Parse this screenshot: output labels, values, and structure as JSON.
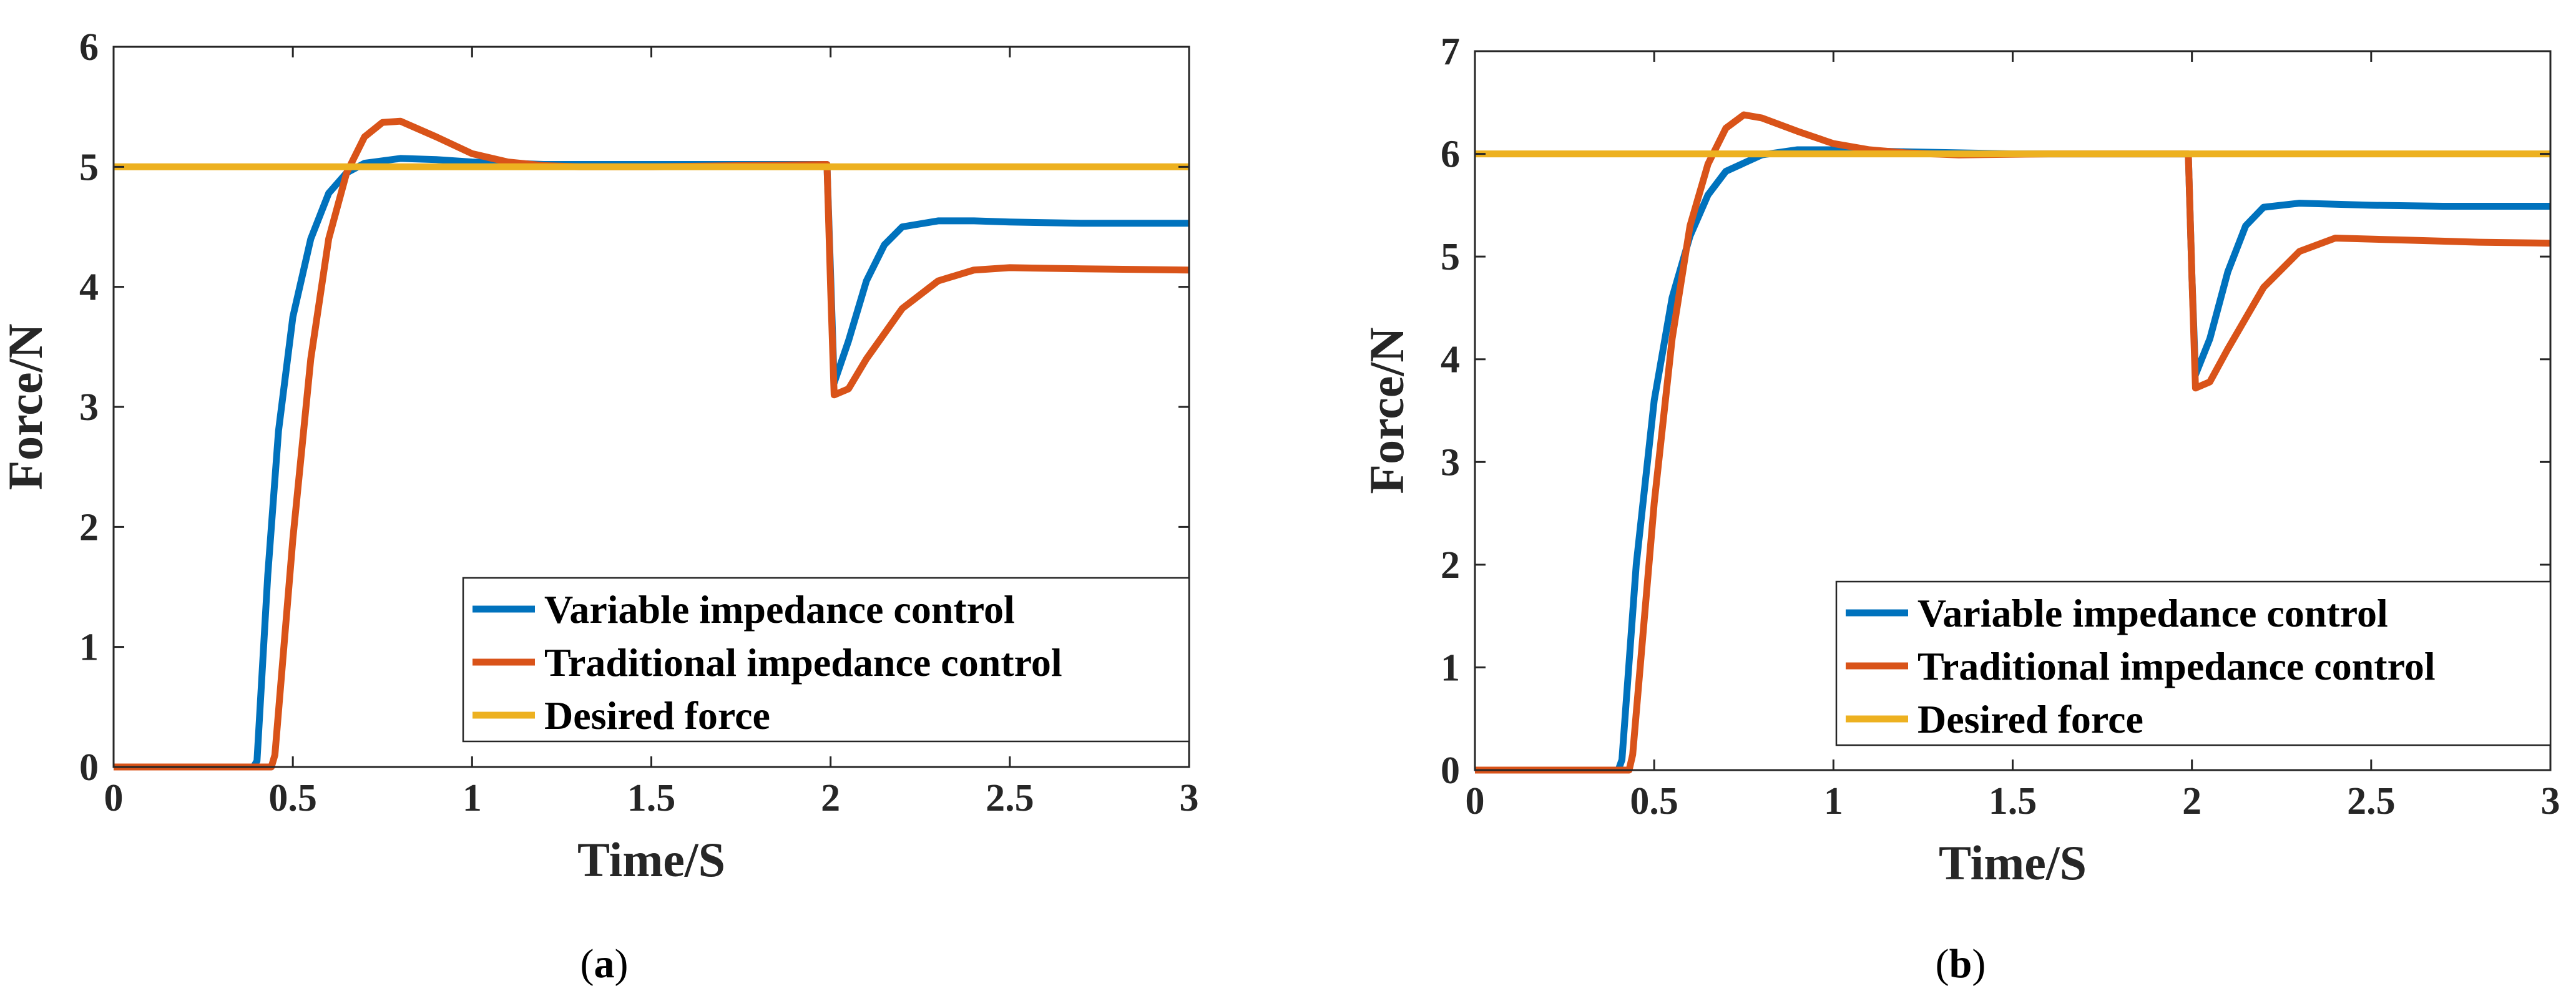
{
  "chart_data": [
    {
      "type": "line",
      "panel_label": "a",
      "xlabel": "Time/S",
      "ylabel": "Force/N",
      "xlim": [
        0,
        3
      ],
      "ylim": [
        0,
        6
      ],
      "xticks": [
        0,
        0.5,
        1,
        1.5,
        2,
        2.5,
        3
      ],
      "xtick_labels": [
        "0",
        "0.5",
        "1",
        "1.5",
        "2",
        "2.5",
        "3"
      ],
      "yticks": [
        0,
        1,
        2,
        3,
        4,
        5,
        6
      ],
      "ytick_labels": [
        "0",
        "1",
        "2",
        "3",
        "4",
        "5",
        "6"
      ],
      "grid": false,
      "legend_position": "bottom-right",
      "series": [
        {
          "name": "Variable impedance control",
          "color": "#0072BD",
          "x": [
            0,
            0.39,
            0.4,
            0.43,
            0.46,
            0.5,
            0.55,
            0.6,
            0.65,
            0.7,
            0.8,
            0.9,
            1.0,
            1.2,
            1.5,
            1.99,
            2.0,
            2.01,
            2.05,
            2.1,
            2.15,
            2.2,
            2.3,
            2.4,
            2.5,
            2.7,
            3.0
          ],
          "y": [
            0,
            0,
            0.05,
            1.6,
            2.8,
            3.75,
            4.4,
            4.78,
            4.95,
            5.03,
            5.07,
            5.06,
            5.04,
            5.02,
            5.02,
            5.02,
            4.1,
            3.2,
            3.55,
            4.05,
            4.35,
            4.5,
            4.55,
            4.55,
            4.54,
            4.53,
            4.53
          ]
        },
        {
          "name": "Traditional impedance control",
          "color": "#D95319",
          "x": [
            0,
            0.44,
            0.45,
            0.5,
            0.55,
            0.6,
            0.65,
            0.7,
            0.75,
            0.8,
            0.9,
            1.0,
            1.1,
            1.2,
            1.3,
            1.5,
            1.99,
            2.0,
            2.01,
            2.05,
            2.1,
            2.2,
            2.3,
            2.4,
            2.5,
            2.7,
            3.0
          ],
          "y": [
            0,
            0,
            0.1,
            1.9,
            3.4,
            4.4,
            4.95,
            5.25,
            5.37,
            5.38,
            5.25,
            5.11,
            5.04,
            5.01,
            5.0,
            5.0,
            5.02,
            4.0,
            3.1,
            3.15,
            3.4,
            3.82,
            4.05,
            4.14,
            4.16,
            4.15,
            4.14
          ]
        },
        {
          "name": "Desired force",
          "color": "#EDB120",
          "x": [
            0,
            3
          ],
          "y": [
            5,
            5
          ]
        }
      ],
      "legend": [
        "Variable impedance control",
        "Traditional impedance control",
        "Desired force"
      ]
    },
    {
      "type": "line",
      "panel_label": "b",
      "xlabel": "Time/S",
      "ylabel": "Force/N",
      "xlim": [
        0,
        3
      ],
      "ylim": [
        0,
        7
      ],
      "xticks": [
        0,
        0.5,
        1,
        1.5,
        2,
        2.5,
        3
      ],
      "xtick_labels": [
        "0",
        "0.5",
        "1",
        "1.5",
        "2",
        "2.5",
        "3"
      ],
      "yticks": [
        0,
        1,
        2,
        3,
        4,
        5,
        6,
        7
      ],
      "ytick_labels": [
        "0",
        "1",
        "2",
        "3",
        "4",
        "5",
        "6",
        "7"
      ],
      "grid": false,
      "legend_position": "bottom-right",
      "series": [
        {
          "name": "Variable impedance control",
          "color": "#0072BD",
          "x": [
            0,
            0.4,
            0.41,
            0.45,
            0.5,
            0.55,
            0.6,
            0.65,
            0.7,
            0.8,
            0.9,
            1.0,
            1.2,
            1.5,
            1.99,
            2.0,
            2.01,
            2.05,
            2.1,
            2.15,
            2.2,
            2.3,
            2.5,
            2.7,
            3.0
          ],
          "y": [
            0,
            0,
            0.1,
            2.0,
            3.6,
            4.6,
            5.2,
            5.6,
            5.83,
            5.99,
            6.04,
            6.04,
            6.02,
            6.0,
            6.0,
            4.8,
            3.85,
            4.2,
            4.85,
            5.3,
            5.48,
            5.52,
            5.5,
            5.49,
            5.49
          ]
        },
        {
          "name": "Traditional impedance control",
          "color": "#D95319",
          "x": [
            0,
            0.43,
            0.44,
            0.5,
            0.55,
            0.6,
            0.65,
            0.7,
            0.75,
            0.8,
            0.9,
            1.0,
            1.1,
            1.2,
            1.35,
            1.6,
            1.99,
            2.0,
            2.01,
            2.05,
            2.1,
            2.2,
            2.3,
            2.4,
            2.6,
            2.8,
            3.0
          ],
          "y": [
            0,
            0,
            0.15,
            2.6,
            4.2,
            5.3,
            5.9,
            6.25,
            6.38,
            6.35,
            6.22,
            6.1,
            6.04,
            6.01,
            5.99,
            6.0,
            6.0,
            4.8,
            3.72,
            3.78,
            4.1,
            4.7,
            5.05,
            5.18,
            5.16,
            5.14,
            5.13
          ]
        },
        {
          "name": "Desired force",
          "color": "#EDB120",
          "x": [
            0,
            3
          ],
          "y": [
            6,
            6
          ]
        }
      ],
      "legend": [
        "Variable impedance control",
        "Traditional impedance control",
        "Desired force"
      ]
    }
  ]
}
